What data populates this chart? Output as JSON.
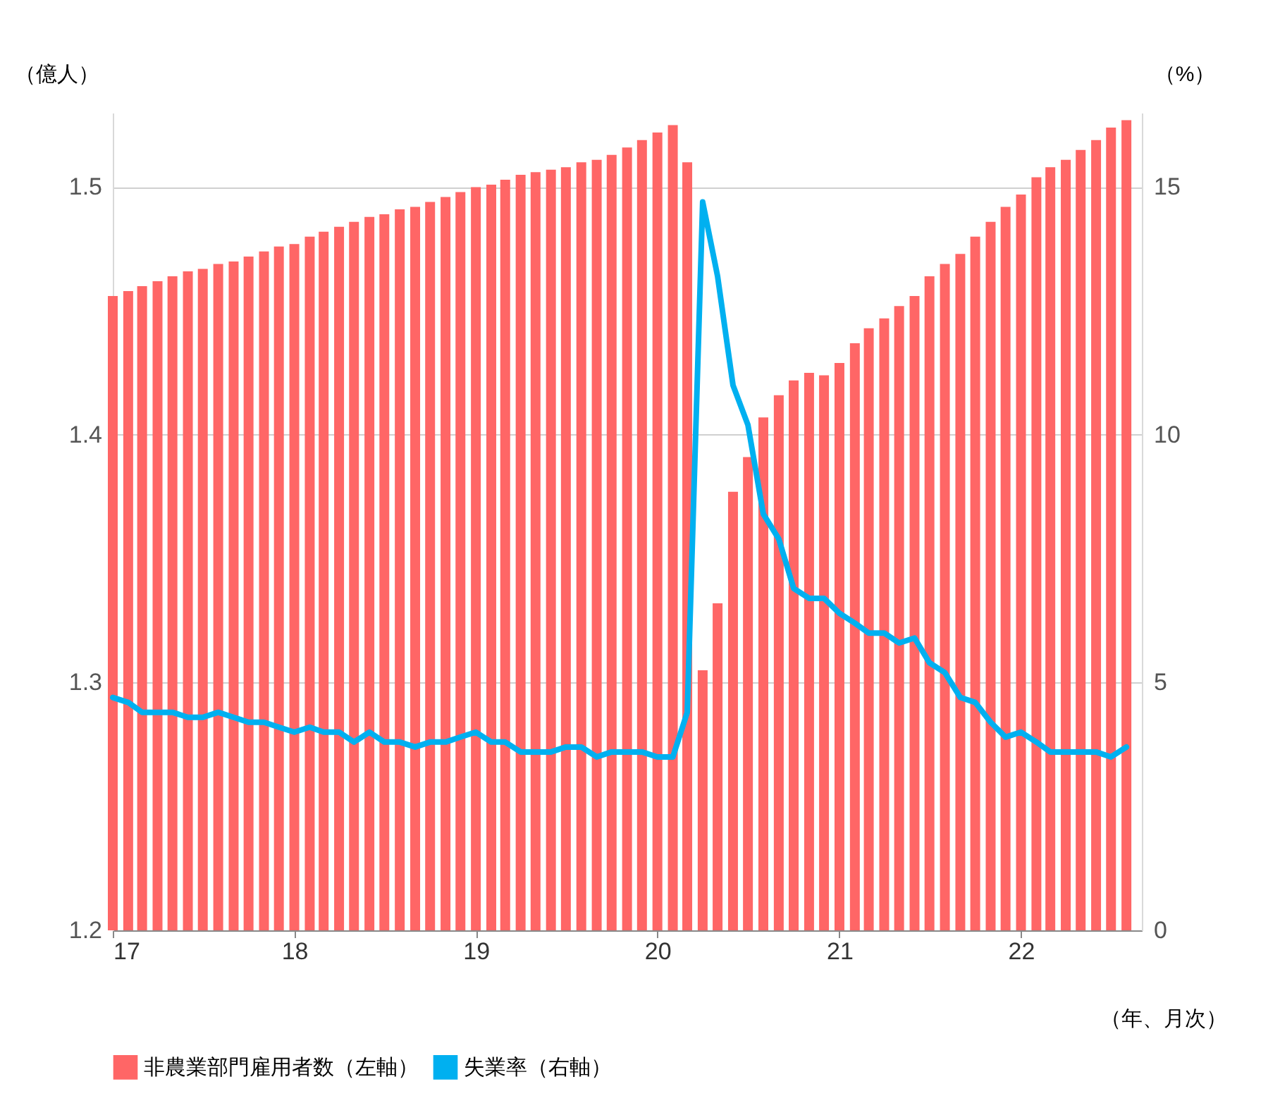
{
  "chart_data": {
    "type": "bar",
    "ylabel": "（億人）",
    "y2label": "（%）",
    "xlabel": "（年、月次）",
    "x": [
      "2017-01",
      "2017-02",
      "2017-03",
      "2017-04",
      "2017-05",
      "2017-06",
      "2017-07",
      "2017-08",
      "2017-09",
      "2017-10",
      "2017-11",
      "2017-12",
      "2018-01",
      "2018-02",
      "2018-03",
      "2018-04",
      "2018-05",
      "2018-06",
      "2018-07",
      "2018-08",
      "2018-09",
      "2018-10",
      "2018-11",
      "2018-12",
      "2019-01",
      "2019-02",
      "2019-03",
      "2019-04",
      "2019-05",
      "2019-06",
      "2019-07",
      "2019-08",
      "2019-09",
      "2019-10",
      "2019-11",
      "2019-12",
      "2020-01",
      "2020-02",
      "2020-03",
      "2020-04",
      "2020-05",
      "2020-06",
      "2020-07",
      "2020-08",
      "2020-09",
      "2020-10",
      "2020-11",
      "2020-12",
      "2021-01",
      "2021-02",
      "2021-03",
      "2021-04",
      "2021-05",
      "2021-06",
      "2021-07",
      "2021-08",
      "2021-09",
      "2021-10",
      "2021-11",
      "2021-12",
      "2022-01",
      "2022-02",
      "2022-03",
      "2022-04",
      "2022-05",
      "2022-06",
      "2022-07",
      "2022-08"
    ],
    "series": [
      {
        "name": "非農業部門雇用者数（左軸）",
        "color": "#ff6666",
        "values": [
          1.456,
          1.458,
          1.46,
          1.462,
          1.464,
          1.466,
          1.467,
          1.469,
          1.47,
          1.472,
          1.474,
          1.476,
          1.477,
          1.48,
          1.482,
          1.484,
          1.486,
          1.488,
          1.489,
          1.491,
          1.492,
          1.494,
          1.496,
          1.498,
          1.5,
          1.501,
          1.503,
          1.505,
          1.506,
          1.507,
          1.508,
          1.51,
          1.511,
          1.513,
          1.516,
          1.519,
          1.522,
          1.525,
          1.51,
          1.305,
          1.332,
          1.377,
          1.391,
          1.407,
          1.416,
          1.422,
          1.425,
          1.424,
          1.429,
          1.437,
          1.443,
          1.447,
          1.452,
          1.456,
          1.464,
          1.469,
          1.473,
          1.48,
          1.486,
          1.492,
          1.497,
          1.504,
          1.508,
          1.511,
          1.515,
          1.519,
          1.524,
          1.527
        ]
      },
      {
        "name": "失業率（右軸）",
        "type": "line",
        "axis": "y2",
        "color": "#00b0f0",
        "values": [
          4.7,
          4.6,
          4.4,
          4.4,
          4.4,
          4.3,
          4.3,
          4.4,
          4.3,
          4.2,
          4.2,
          4.1,
          4.0,
          4.1,
          4.0,
          4.0,
          3.8,
          4.0,
          3.8,
          3.8,
          3.7,
          3.8,
          3.8,
          3.9,
          4.0,
          3.8,
          3.8,
          3.6,
          3.6,
          3.6,
          3.7,
          3.7,
          3.5,
          3.6,
          3.6,
          3.6,
          3.5,
          3.5,
          4.4,
          14.7,
          13.2,
          11.0,
          10.2,
          8.4,
          7.9,
          6.9,
          6.7,
          6.7,
          6.4,
          6.2,
          6.0,
          6.0,
          5.8,
          5.9,
          5.4,
          5.2,
          4.7,
          4.6,
          4.2,
          3.9,
          4.0,
          3.8,
          3.6,
          3.6,
          3.6,
          3.6,
          3.5,
          3.7
        ]
      }
    ],
    "xlim": [
      "2017-01",
      "2022-09"
    ],
    "xticks": [
      {
        "value": "2017-01",
        "label": "17"
      },
      {
        "value": "2018-01",
        "label": "18"
      },
      {
        "value": "2019-01",
        "label": "19"
      },
      {
        "value": "2020-01",
        "label": "20"
      },
      {
        "value": "2021-01",
        "label": "21"
      },
      {
        "value": "2022-01",
        "label": "22"
      }
    ],
    "ylim": [
      1.2,
      1.53
    ],
    "yticks": [
      1.2,
      1.3,
      1.4,
      1.5
    ],
    "y2lim": [
      0,
      16.5
    ],
    "y2ticks": [
      0,
      5,
      10,
      15
    ],
    "grid": "y",
    "legend": "bottom"
  }
}
